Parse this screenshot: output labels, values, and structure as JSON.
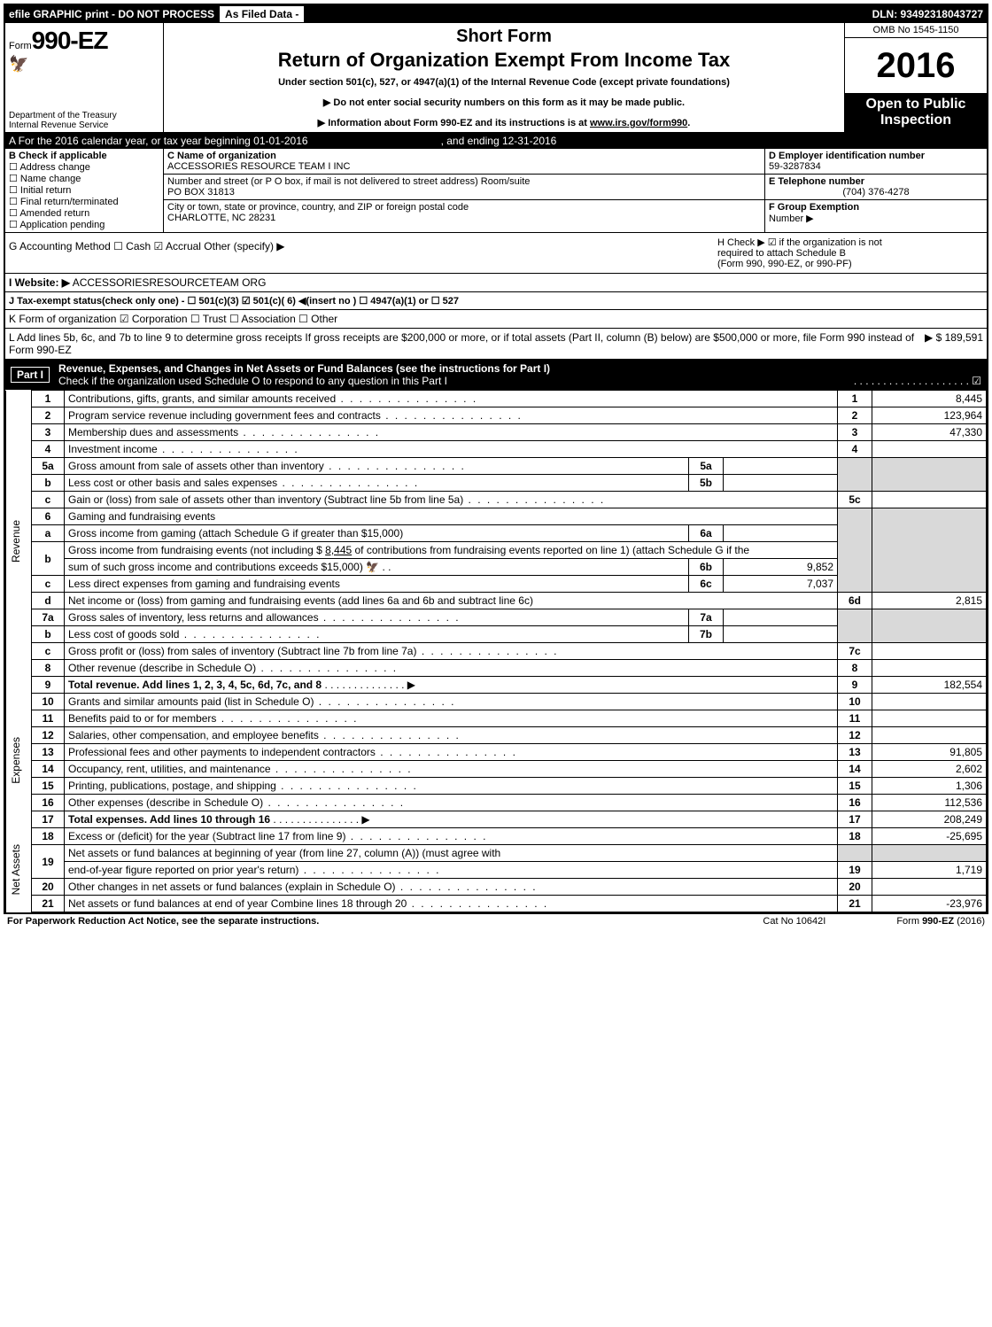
{
  "topbar": {
    "efile": "efile GRAPHIC print - DO NOT PROCESS",
    "asfiled": "As Filed Data -",
    "dln": "DLN: 93492318043727"
  },
  "header": {
    "form_prefix": "Form",
    "form_number": "990-EZ",
    "short_form": "Short Form",
    "title": "Return of Organization Exempt From Income Tax",
    "subtitle": "Under section 501(c), 527, or 4947(a)(1) of the Internal Revenue Code (except private foundations)",
    "do_not": "Do not enter social security numbers on this form as it may be made public.",
    "info_about": "Information about Form 990-EZ and its instructions is at ",
    "info_link": "www.irs.gov/form990",
    "dept1": "Department of the Treasury",
    "dept2": "Internal Revenue Service",
    "omb": "OMB No 1545-1150",
    "year": "2016",
    "open1": "Open to Public",
    "open2": "Inspection"
  },
  "rowA": {
    "text": "A  For the 2016 calendar year, or tax year beginning 01-01-2016",
    "ending": ", and ending 12-31-2016"
  },
  "B": {
    "title": "B  Check if applicable",
    "items": [
      "Address change",
      "Name change",
      "Initial return",
      "Final return/terminated",
      "Amended return",
      "Application pending"
    ]
  },
  "C": {
    "label": "C Name of organization",
    "name": "ACCESSORIES RESOURCE TEAM I INC",
    "street_label": "Number and street (or P  O  box, if mail is not delivered to street address)  Room/suite",
    "street": "PO BOX 31813",
    "city_label": "City or town, state or province, country, and ZIP or foreign postal code",
    "city": "CHARLOTTE, NC  28231"
  },
  "D": {
    "label": "D Employer identification number",
    "value": "59-3287834"
  },
  "E": {
    "label": "E Telephone number",
    "value": "(704) 376-4278"
  },
  "F": {
    "label": "F Group Exemption",
    "label2": "Number  ▶"
  },
  "G": {
    "text": "G Accounting Method     ☐ Cash   ☑ Accrual   Other (specify) ▶"
  },
  "H": {
    "text1": "H    Check ▶   ☑  if the organization is not",
    "text2": "required to attach Schedule B",
    "text3": "(Form 990, 990-EZ, or 990-PF)"
  },
  "I": {
    "label": "I Website: ▶",
    "value": "ACCESSORIESRESOURCETEAM ORG"
  },
  "J": {
    "text": "J Tax-exempt status(check only one) - ☐ 501(c)(3)  ☑  501(c)( 6) ◀(insert no ) ☐  4947(a)(1) or  ☐ 527"
  },
  "K": {
    "text": "K Form of organization    ☑ Corporation   ☐ Trust   ☐ Association   ☐ Other"
  },
  "L": {
    "text": "L Add lines 5b, 6c, and 7b to line 9 to determine gross receipts  If gross receipts are $200,000 or more, or if total assets (Part II, column (B) below) are $500,000 or more, file Form 990 instead of Form 990-EZ",
    "amount": "▶ $ 189,591"
  },
  "partI": {
    "label": "Part I",
    "title": "Revenue, Expenses, and Changes in Net Assets or Fund Balances (see the instructions for Part I)",
    "check": "Check if the organization used Schedule O to respond to any question in this Part I"
  },
  "sidebar": {
    "revenue": "Revenue",
    "expenses": "Expenses",
    "netassets": "Net Assets"
  },
  "lines": {
    "l1": {
      "n": "1",
      "d": "Contributions, gifts, grants, and similar amounts received",
      "r": "1",
      "v": "8,445"
    },
    "l2": {
      "n": "2",
      "d": "Program service revenue including government fees and contracts",
      "r": "2",
      "v": "123,964"
    },
    "l3": {
      "n": "3",
      "d": "Membership dues and assessments",
      "r": "3",
      "v": "47,330"
    },
    "l4": {
      "n": "4",
      "d": "Investment income",
      "r": "4",
      "v": ""
    },
    "l5a": {
      "n": "5a",
      "d": "Gross amount from sale of assets other than inventory",
      "sr": "5a",
      "sv": ""
    },
    "l5b": {
      "n": "b",
      "d": "Less  cost or other basis and sales expenses",
      "sr": "5b",
      "sv": ""
    },
    "l5c": {
      "n": "c",
      "d": "Gain or (loss) from sale of assets other than inventory (Subtract line 5b from line 5a)",
      "r": "5c",
      "v": ""
    },
    "l6": {
      "n": "6",
      "d": "Gaming and fundraising events"
    },
    "l6a": {
      "n": "a",
      "d": "Gross income from gaming (attach Schedule G if greater than $15,000)",
      "sr": "6a",
      "sv": ""
    },
    "l6b": {
      "n": "b",
      "d1": "Gross income from fundraising events (not including $ ",
      "d1u": "  8,445",
      "d1b": "            of contributions from fundraising events reported on line 1) (attach Schedule G if the",
      "d2": "sum of such gross income and contributions exceeds $15,000) ",
      "sr": "6b",
      "sv": "9,852"
    },
    "l6c": {
      "n": "c",
      "d": "Less  direct expenses from gaming and fundraising events",
      "sr": "6c",
      "sv": "7,037"
    },
    "l6d": {
      "n": "d",
      "d": "Net income or (loss) from gaming and fundraising events (add lines 6a and 6b and subtract line 6c)",
      "r": "6d",
      "v": "2,815"
    },
    "l7a": {
      "n": "7a",
      "d": "Gross sales of inventory, less returns and allowances",
      "sr": "7a",
      "sv": ""
    },
    "l7b": {
      "n": "b",
      "d": "Less  cost of goods sold",
      "sr": "7b",
      "sv": ""
    },
    "l7c": {
      "n": "c",
      "d": "Gross profit or (loss) from sales of inventory (Subtract line 7b from line 7a)",
      "r": "7c",
      "v": ""
    },
    "l8": {
      "n": "8",
      "d": "Other revenue (describe in Schedule O)",
      "r": "8",
      "v": ""
    },
    "l9": {
      "n": "9",
      "d": "Total revenue. Add lines 1, 2, 3, 4, 5c, 6d, 7c, and 8",
      "r": "9",
      "v": "182,554"
    },
    "l10": {
      "n": "10",
      "d": "Grants and similar amounts paid (list in Schedule O)",
      "r": "10",
      "v": ""
    },
    "l11": {
      "n": "11",
      "d": "Benefits paid to or for members",
      "r": "11",
      "v": ""
    },
    "l12": {
      "n": "12",
      "d": "Salaries, other compensation, and employee benefits",
      "r": "12",
      "v": ""
    },
    "l13": {
      "n": "13",
      "d": "Professional fees and other payments to independent contractors",
      "r": "13",
      "v": "91,805"
    },
    "l14": {
      "n": "14",
      "d": "Occupancy, rent, utilities, and maintenance",
      "r": "14",
      "v": "2,602"
    },
    "l15": {
      "n": "15",
      "d": "Printing, publications, postage, and shipping",
      "r": "15",
      "v": "1,306"
    },
    "l16": {
      "n": "16",
      "d": "Other expenses (describe in Schedule O)",
      "r": "16",
      "v": "112,536"
    },
    "l17": {
      "n": "17",
      "d": "Total expenses. Add lines 10 through 16",
      "r": "17",
      "v": "208,249"
    },
    "l18": {
      "n": "18",
      "d": "Excess or (deficit) for the year (Subtract line 17 from line 9)",
      "r": "18",
      "v": "-25,695"
    },
    "l19": {
      "n": "19",
      "d": "Net assets or fund balances at beginning of year (from line 27, column (A)) (must agree with",
      "d2": "end-of-year figure reported on prior year's return)",
      "r": "19",
      "v": "1,719"
    },
    "l20": {
      "n": "20",
      "d": "Other changes in net assets or fund balances (explain in Schedule O)",
      "r": "20",
      "v": ""
    },
    "l21": {
      "n": "21",
      "d": "Net assets or fund balances at end of year  Combine lines 18 through 20",
      "r": "21",
      "v": "-23,976"
    }
  },
  "footer": {
    "left": "For Paperwork Reduction Act Notice, see the separate instructions.",
    "mid": "Cat  No  10642I",
    "right": "Form 990-EZ (2016)"
  }
}
